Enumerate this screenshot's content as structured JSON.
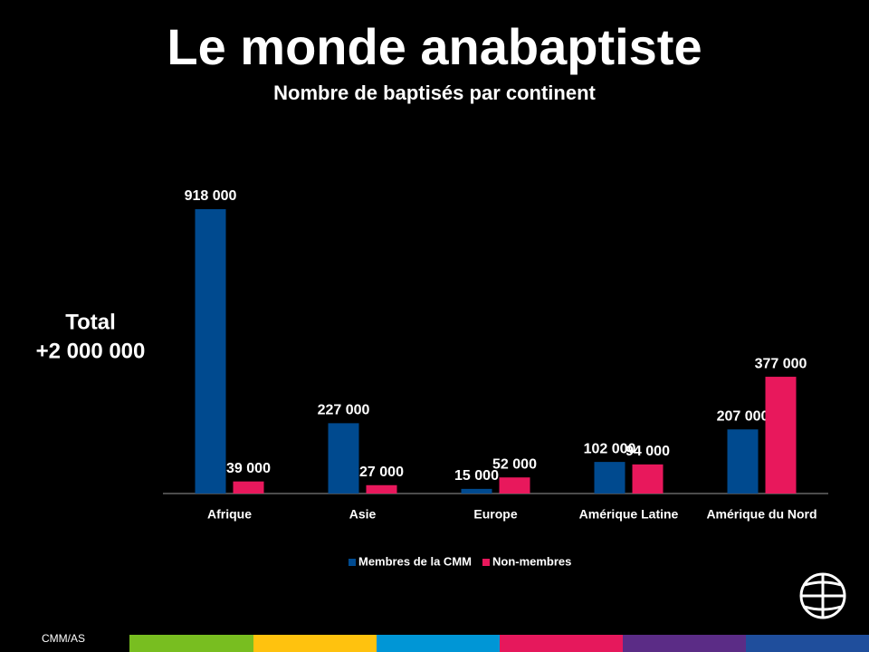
{
  "chart_data": {
    "type": "bar",
    "title": "Le monde anabaptiste",
    "subtitle": "Nombre de baptisés par continent",
    "annotation": [
      "Total",
      "+2 000 000"
    ],
    "footer": "CMM/AS",
    "categories": [
      "Afrique",
      "Asie",
      "Europe",
      "Amérique Latine",
      "Amérique du Nord"
    ],
    "series": [
      {
        "name": "Membres de la CMM",
        "color": "#004a8f",
        "values": [
          918000,
          227000,
          15000,
          102000,
          207000
        ],
        "value_labels": [
          "918 000",
          "227 000",
          "15 000",
          "102 000",
          "207 000"
        ]
      },
      {
        "name": "Non-membres",
        "color": "#e8185c",
        "values": [
          39000,
          27000,
          52000,
          94000,
          377000
        ],
        "value_labels": [
          "39 000",
          "27 000",
          "52 000",
          "94 000",
          "377 000"
        ]
      }
    ],
    "legend": "bottom"
  }
}
